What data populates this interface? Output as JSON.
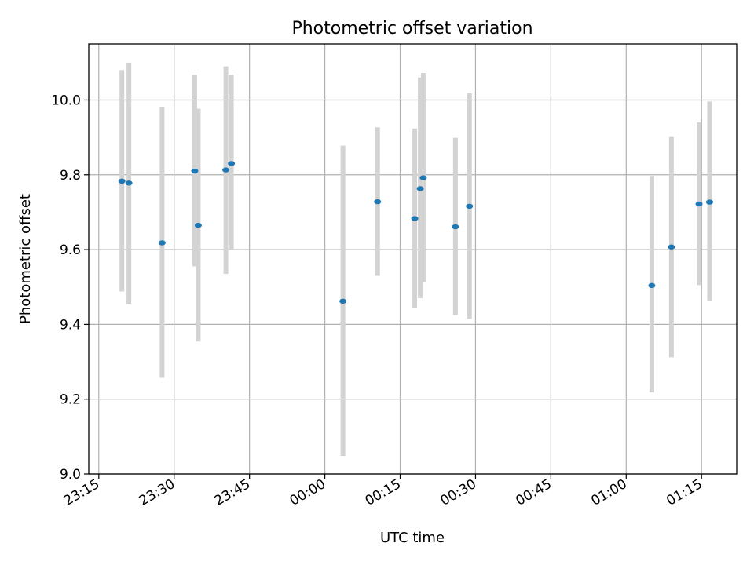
{
  "chart_data": {
    "type": "scatter",
    "title": "Photometric offset variation",
    "xlabel": "UTC time",
    "ylabel": "Photometric offset",
    "xlim": [
      "23:13",
      "01:22"
    ],
    "ylim": [
      9.0,
      10.15
    ],
    "grid": true,
    "x_ticks": [
      "23:15",
      "23:30",
      "23:45",
      "00:00",
      "00:15",
      "00:30",
      "00:45",
      "01:00",
      "01:15"
    ],
    "y_ticks": [
      "9.0",
      "9.2",
      "9.4",
      "9.6",
      "9.8",
      "10.0"
    ],
    "colors": {
      "points": "#1f77b4",
      "error_bars": "#d3d3d3",
      "grid": "#b0b0b0"
    },
    "points": [
      {
        "x": "23:19.6",
        "y": 9.783,
        "err": [
          9.488,
          10.08
        ]
      },
      {
        "x": "23:21.0",
        "y": 9.778,
        "err": [
          9.455,
          10.1
        ]
      },
      {
        "x": "23:27.6",
        "y": 9.618,
        "err": [
          9.257,
          9.982
        ]
      },
      {
        "x": "23:34.1",
        "y": 9.81,
        "err": [
          9.555,
          10.068
        ]
      },
      {
        "x": "23:34.8",
        "y": 9.665,
        "err": [
          9.354,
          9.977
        ]
      },
      {
        "x": "23:40.3",
        "y": 9.813,
        "err": [
          9.535,
          10.09
        ]
      },
      {
        "x": "23:41.4",
        "y": 9.83,
        "err": [
          9.598,
          10.068
        ]
      },
      {
        "x": "00:03.6",
        "y": 9.462,
        "err": [
          9.048,
          9.878
        ]
      },
      {
        "x": "00:10.5",
        "y": 9.728,
        "err": [
          9.53,
          9.927
        ]
      },
      {
        "x": "00:17.9",
        "y": 9.683,
        "err": [
          9.445,
          9.924
        ]
      },
      {
        "x": "00:19.0",
        "y": 9.763,
        "err": [
          9.47,
          10.06
        ]
      },
      {
        "x": "00:19.6",
        "y": 9.792,
        "err": [
          9.513,
          10.072
        ]
      },
      {
        "x": "00:26.0",
        "y": 9.661,
        "err": [
          9.425,
          9.899
        ]
      },
      {
        "x": "00:28.8",
        "y": 9.716,
        "err": [
          9.415,
          10.018
        ]
      },
      {
        "x": "01:05.1",
        "y": 9.504,
        "err": [
          9.218,
          9.797
        ]
      },
      {
        "x": "01:09.0",
        "y": 9.607,
        "err": [
          9.312,
          9.903
        ]
      },
      {
        "x": "01:14.5",
        "y": 9.722,
        "err": [
          9.505,
          9.94
        ]
      },
      {
        "x": "01:16.6",
        "y": 9.727,
        "err": [
          9.462,
          9.996
        ]
      }
    ]
  }
}
